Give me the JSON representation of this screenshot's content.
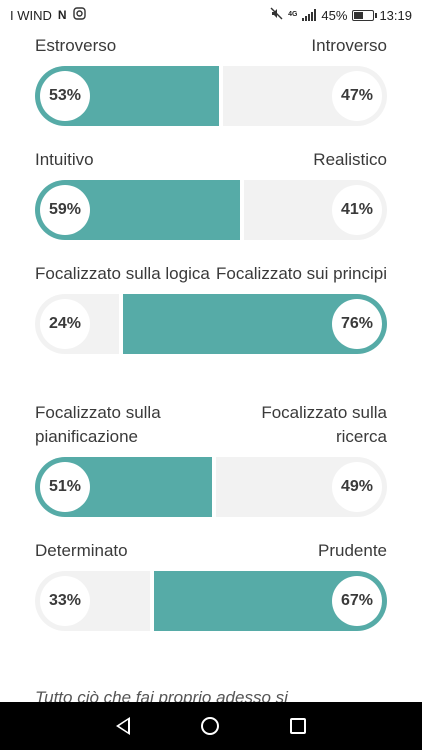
{
  "status_bar": {
    "carrier": "I WIND",
    "battery": "45%",
    "time": "13:19"
  },
  "traits": [
    {
      "left_label": "Estroverso",
      "right_label": "Introverso",
      "left_pct": "53%",
      "right_pct": "47%",
      "left_value": 53,
      "right_value": 47,
      "dominant": "left"
    },
    {
      "left_label": "Intuitivo",
      "right_label": "Realistico",
      "left_pct": "59%",
      "right_pct": "41%",
      "left_value": 59,
      "right_value": 41,
      "dominant": "left"
    },
    {
      "left_label": "Focalizzato sulla logica",
      "right_label": "Focalizzato sui principi",
      "left_pct": "24%",
      "right_pct": "76%",
      "left_value": 24,
      "right_value": 76,
      "dominant": "right"
    },
    {
      "left_label": "Focalizzato sulla pianificazione",
      "right_label": "Focalizzato sulla ricerca",
      "left_pct": "51%",
      "right_pct": "49%",
      "left_value": 51,
      "right_value": 49,
      "dominant": "left"
    },
    {
      "left_label": "Determinato",
      "right_label": "Prudente",
      "left_pct": "33%",
      "right_pct": "67%",
      "left_value": 33,
      "right_value": 67,
      "dominant": "right"
    }
  ],
  "quote_text": "Tutto ciò che fai proprio adesso si",
  "colors": {
    "accent": "#56aba7",
    "empty": "#f2f2f2"
  }
}
